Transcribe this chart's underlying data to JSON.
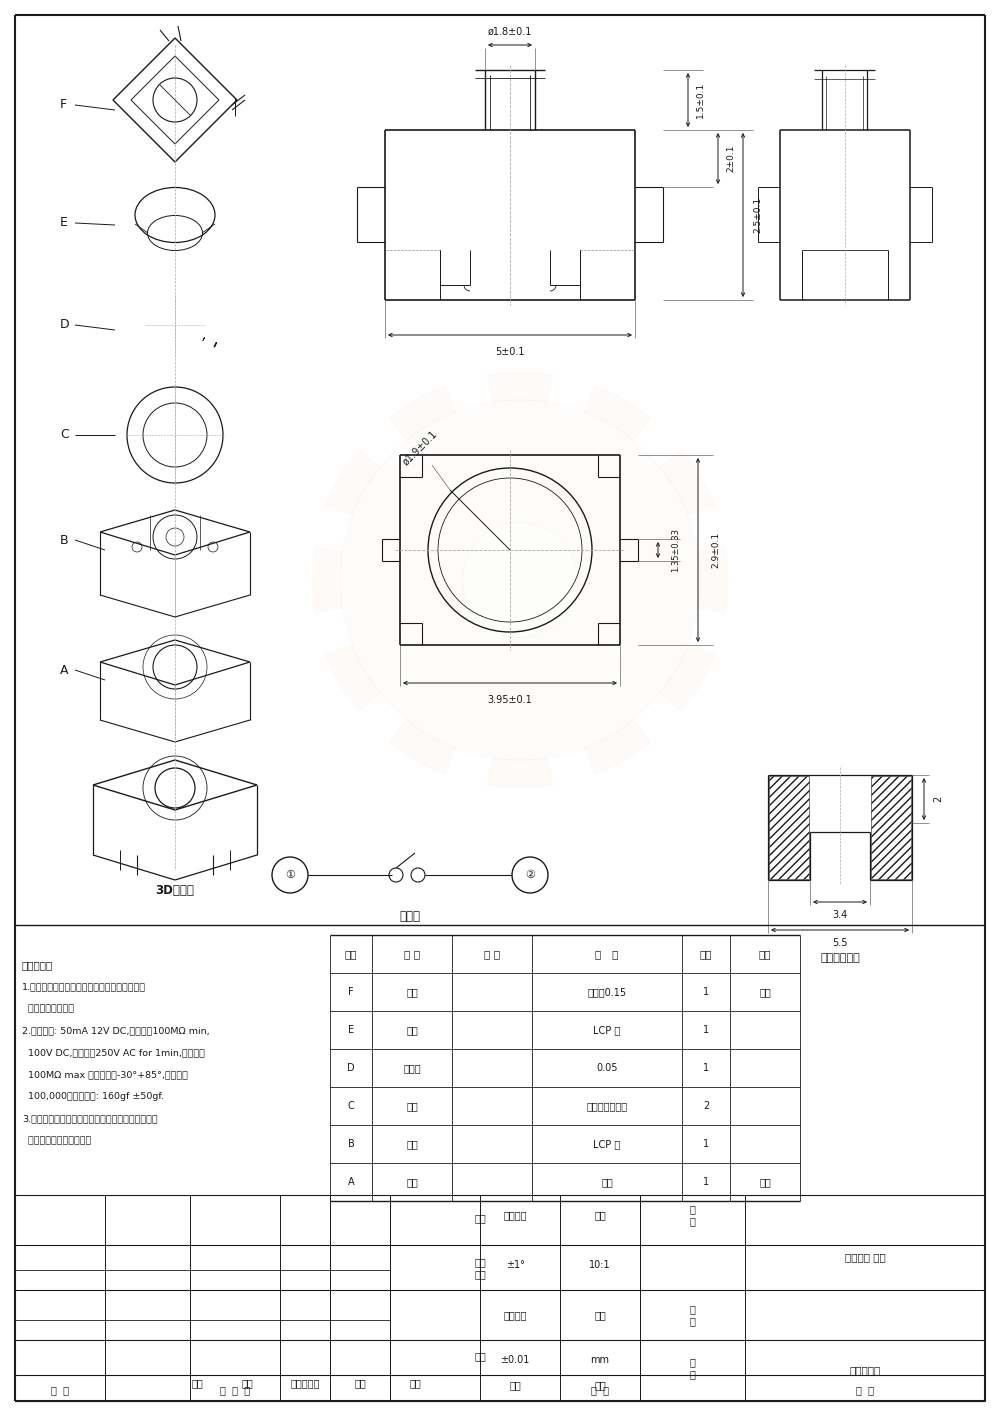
{
  "bg_color": "#ffffff",
  "line_color": "#1a1a1a",
  "page_width": 10.0,
  "page_height": 14.16,
  "tech_requirements": [
    "技术要求：",
    "1.塑料件表面光洁无划伤，水花，变形，影响外",
    "  观及性能等缺陷。",
    "2.额定电流: 50mA 12V DC,绝缘电阻100MΩ min,",
    "  100V DC,介电强度250V AC for 1min,接触电阻",
    "  100MΩ max 。操作温度-30°+85°,使用寿命",
    "  100,000次。操作力: 160gf ±50gf.",
    "3.开关手感明显，档位清晰可靠，无卡滞现象，消除",
    "  外力后，应能快速回位。"
  ],
  "bom_rows": [
    [
      "序号",
      "名 称",
      "料 号",
      "材   料",
      "数量",
      "备注"
    ],
    [
      "F",
      "盖板",
      "",
      "不锈钢0.15",
      "1",
      "酸洗"
    ],
    [
      "E",
      "按扭",
      "",
      "LCP 黑",
      "1",
      ""
    ],
    [
      "D",
      "防水膜",
      "",
      "0.05",
      "1",
      ""
    ],
    [
      "C",
      "簧片",
      "",
      "进口不锈钢复银",
      "2",
      ""
    ],
    [
      "B",
      "底座",
      "",
      "LCP 黑",
      "1",
      ""
    ],
    [
      "A",
      "卡件",
      "",
      "磷铜",
      "1",
      "镀锡"
    ]
  ],
  "dim_labels": {
    "phi_1_8": "ø1.8±0.1",
    "dim_5": "5±0.1",
    "dim_1_5": "1.5±0.1",
    "dim_2": "2±0.1",
    "dim_2_5": "2.5±0.1",
    "phi_1_9": "ø1.9±0.1",
    "dim_3_95": "3.95±0.1",
    "dim_1_35": "1.35±0.33",
    "dim_2_9": "2.9±0.1",
    "dim_3_4": "3.4",
    "dim_5_5": "5.5",
    "dim_2_right": "2"
  },
  "label_3d": "3D轴测图",
  "label_yuanli": "原理图",
  "label_anzhuang": "安装参考尺寸"
}
